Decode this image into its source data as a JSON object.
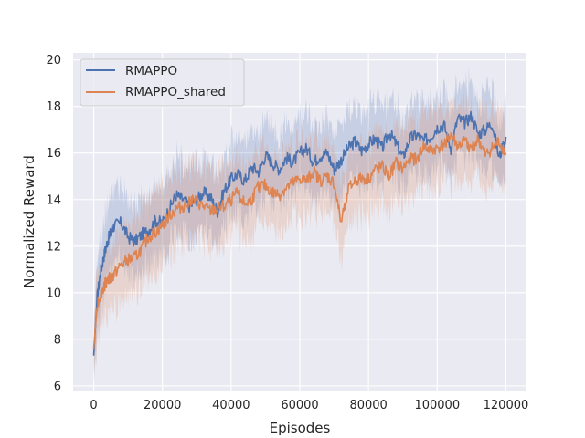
{
  "chart_data": {
    "type": "line",
    "title": "",
    "xlabel": "Episodes",
    "ylabel": "Normalized Reward",
    "xlim": [
      -6000,
      126000
    ],
    "ylim": [
      5.8,
      20.3
    ],
    "xticks": [
      0,
      20000,
      40000,
      60000,
      80000,
      100000,
      120000
    ],
    "yticks": [
      6,
      8,
      10,
      12,
      14,
      16,
      18,
      20
    ],
    "grid": true,
    "legend_position": "top-left",
    "series": [
      {
        "name": "RMAPPO",
        "color": "#4c72b0",
        "x": [
          0,
          1000,
          2000,
          3000,
          4000,
          5000,
          6000,
          8000,
          10000,
          12000,
          14000,
          16000,
          18000,
          20000,
          22000,
          24000,
          26000,
          28000,
          30000,
          32000,
          34000,
          36000,
          38000,
          40000,
          42000,
          44000,
          46000,
          48000,
          50000,
          52000,
          54000,
          56000,
          58000,
          60000,
          62000,
          64000,
          66000,
          68000,
          70000,
          72000,
          74000,
          76000,
          78000,
          80000,
          82000,
          84000,
          86000,
          88000,
          90000,
          92000,
          94000,
          96000,
          98000,
          100000,
          102000,
          104000,
          106000,
          108000,
          110000,
          112000,
          114000,
          116000,
          118000,
          120000
        ],
        "y": [
          7.3,
          9.8,
          10.9,
          11.6,
          12.2,
          12.6,
          12.9,
          13.0,
          12.4,
          12.2,
          12.5,
          12.7,
          13.1,
          13.0,
          13.6,
          14.2,
          14.0,
          13.7,
          14.0,
          14.3,
          14.1,
          13.5,
          14.4,
          14.9,
          15.1,
          14.8,
          15.4,
          15.2,
          15.9,
          15.6,
          15.3,
          15.8,
          15.6,
          16.0,
          16.2,
          15.6,
          15.9,
          16.0,
          15.3,
          15.7,
          16.2,
          16.5,
          16.1,
          16.4,
          16.6,
          16.2,
          16.9,
          16.4,
          15.8,
          16.6,
          16.8,
          16.5,
          16.7,
          17.1,
          17.2,
          16.2,
          17.5,
          17.3,
          17.6,
          16.8,
          17.0,
          17.3,
          15.8,
          16.7
        ]
      },
      {
        "name": "RMAPPO_shared",
        "color": "#dd8452",
        "x": [
          0,
          1000,
          2000,
          3000,
          4000,
          5000,
          6000,
          8000,
          10000,
          12000,
          14000,
          16000,
          18000,
          20000,
          22000,
          24000,
          26000,
          28000,
          30000,
          32000,
          34000,
          36000,
          38000,
          40000,
          42000,
          44000,
          46000,
          48000,
          50000,
          52000,
          54000,
          56000,
          58000,
          60000,
          62000,
          64000,
          66000,
          68000,
          70000,
          72000,
          74000,
          76000,
          78000,
          80000,
          82000,
          84000,
          86000,
          88000,
          90000,
          92000,
          94000,
          96000,
          98000,
          100000,
          102000,
          104000,
          106000,
          108000,
          110000,
          112000,
          114000,
          116000,
          118000,
          120000
        ],
        "y": [
          7.6,
          9.5,
          9.9,
          10.3,
          10.6,
          10.6,
          10.8,
          11.2,
          11.4,
          11.5,
          11.9,
          12.4,
          12.6,
          12.9,
          13.3,
          13.6,
          13.7,
          14.0,
          13.9,
          13.7,
          13.5,
          13.6,
          13.7,
          14.0,
          14.3,
          13.8,
          14.0,
          14.6,
          14.6,
          14.3,
          14.2,
          14.5,
          14.7,
          14.9,
          14.8,
          15.2,
          14.8,
          15.0,
          14.7,
          13.0,
          14.4,
          14.8,
          14.9,
          14.9,
          15.3,
          15.4,
          15.0,
          15.6,
          15.3,
          15.8,
          15.7,
          16.3,
          16.1,
          16.2,
          16.4,
          16.8,
          16.3,
          16.5,
          16.2,
          16.6,
          15.9,
          16.2,
          16.5,
          16.0
        ]
      }
    ]
  }
}
